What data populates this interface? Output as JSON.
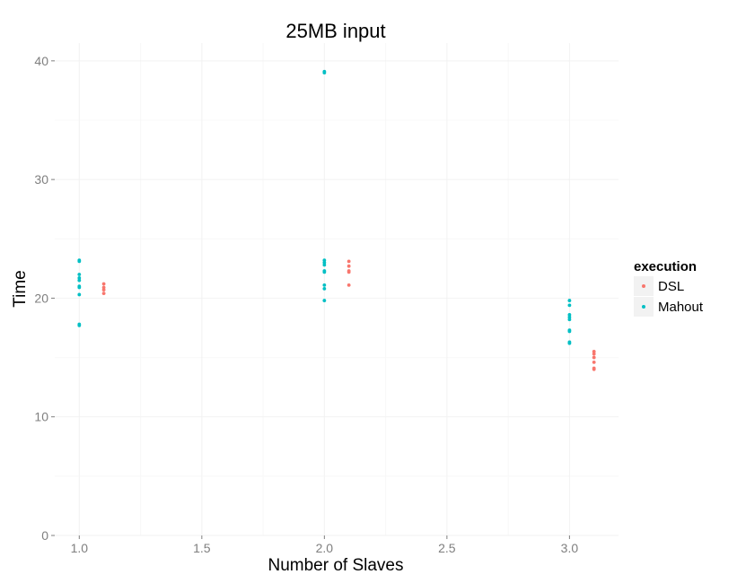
{
  "chart_data": {
    "type": "scatter",
    "title": "25MB input",
    "xlabel": "Number of Slaves",
    "ylabel": "Time",
    "xlim": [
      0.9,
      3.2
    ],
    "ylim": [
      0,
      41.5
    ],
    "x_ticks": [
      "1.0",
      "1.5",
      "2.0",
      "2.5",
      "3.0"
    ],
    "x_tick_values": [
      1.0,
      1.5,
      2.0,
      2.5,
      3.0
    ],
    "y_ticks": [
      "0",
      "10",
      "20",
      "30",
      "40"
    ],
    "y_tick_values": [
      0,
      10,
      20,
      30,
      40
    ],
    "grid": true,
    "legend_position": "right",
    "legend_title": "execution",
    "series": [
      {
        "name": "DSL",
        "color": "#F8766D",
        "points": [
          [
            1.1,
            21.2
          ],
          [
            1.1,
            20.9
          ],
          [
            1.1,
            20.7
          ],
          [
            1.1,
            20.4
          ],
          [
            2.1,
            23.1
          ],
          [
            2.1,
            22.7
          ],
          [
            2.1,
            22.3
          ],
          [
            2.1,
            22.2
          ],
          [
            2.1,
            21.1
          ],
          [
            3.1,
            15.5
          ],
          [
            3.1,
            15.3
          ],
          [
            3.1,
            15.0
          ],
          [
            3.1,
            14.6
          ],
          [
            3.1,
            14.1
          ],
          [
            3.1,
            14.0
          ]
        ]
      },
      {
        "name": "Mahout",
        "color": "#00BFC4",
        "points": [
          [
            1.0,
            23.2
          ],
          [
            1.0,
            23.1
          ],
          [
            1.0,
            22.0
          ],
          [
            1.0,
            21.7
          ],
          [
            1.0,
            21.5
          ],
          [
            1.0,
            21.0
          ],
          [
            1.0,
            20.9
          ],
          [
            1.0,
            20.3
          ],
          [
            1.0,
            17.8
          ],
          [
            1.0,
            17.7
          ],
          [
            2.0,
            39.1
          ],
          [
            2.0,
            39.0
          ],
          [
            2.0,
            23.2
          ],
          [
            2.0,
            23.0
          ],
          [
            2.0,
            22.8
          ],
          [
            2.0,
            22.3
          ],
          [
            2.0,
            22.2
          ],
          [
            2.0,
            21.1
          ],
          [
            2.0,
            20.8
          ],
          [
            2.0,
            19.8
          ],
          [
            3.0,
            19.8
          ],
          [
            3.0,
            19.4
          ],
          [
            3.0,
            18.6
          ],
          [
            3.0,
            18.4
          ],
          [
            3.0,
            18.2
          ],
          [
            3.0,
            17.3
          ],
          [
            3.0,
            17.2
          ],
          [
            3.0,
            16.3
          ],
          [
            3.0,
            16.2
          ]
        ]
      }
    ]
  }
}
